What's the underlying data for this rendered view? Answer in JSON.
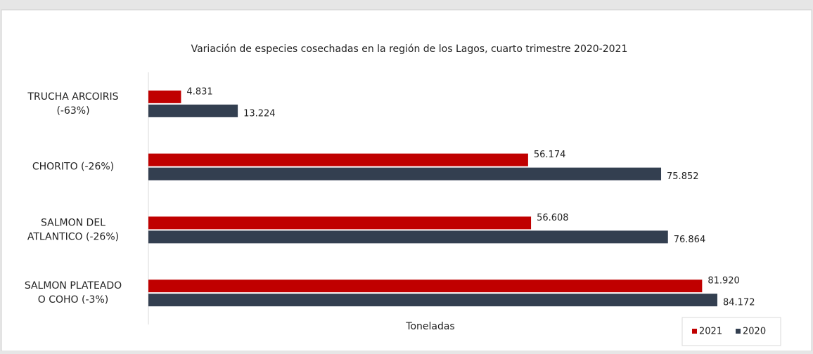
{
  "chart_data": {
    "type": "bar",
    "orientation": "horizontal",
    "title": "Variación de especies cosechadas en la región de los Lagos, cuarto trimestre 2020-2021",
    "xlabel": "Toneladas",
    "categories": [
      "TRUCHA ARCOIRIS\n(-63%)",
      "CHORITO (-26%)",
      "SALMON DEL\nATLANTICO  (-26%)",
      "SALMON PLATEADO\nO COHO (-3%)"
    ],
    "series": [
      {
        "name": "2021",
        "color": "#c00000",
        "values": [
          4831,
          56174,
          56608,
          81920
        ],
        "value_labels": [
          "4.831",
          "56.174",
          "56.608",
          "81.920"
        ]
      },
      {
        "name": "2020",
        "color": "#333f50",
        "values": [
          13224,
          75852,
          76864,
          84172
        ],
        "value_labels": [
          "13.224",
          "75.852",
          "76.864",
          "84.172"
        ]
      }
    ],
    "xlim": [
      0,
      90000
    ],
    "legend": "lower right"
  }
}
